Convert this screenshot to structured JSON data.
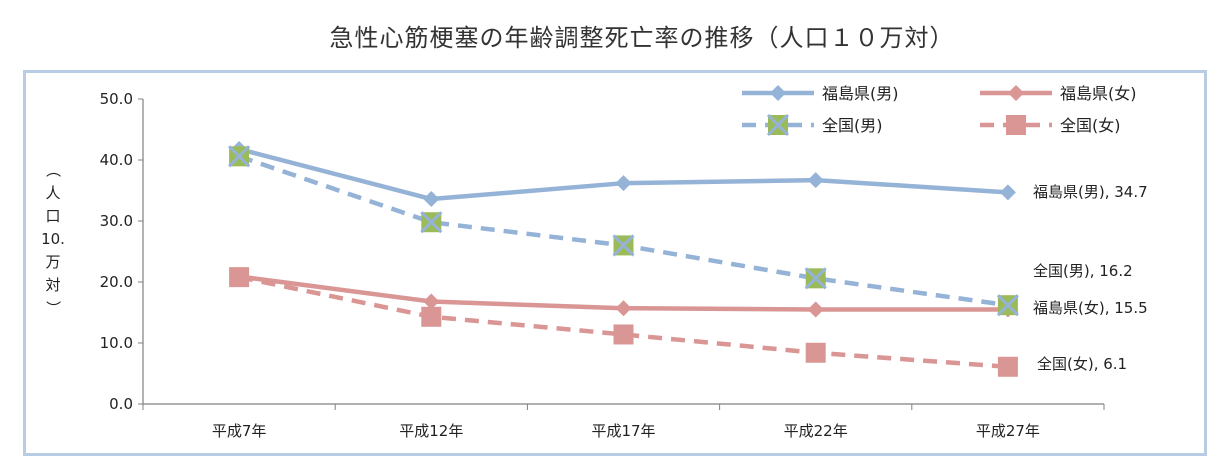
{
  "chart_data": {
    "type": "line",
    "title": "急性心筋梗塞の年齢調整死亡率の推移（人口１０万対）",
    "ylabel_chars": [
      "（",
      "人",
      "口",
      "10.",
      "万",
      "対",
      "）"
    ],
    "categories": [
      "平成7年",
      "平成12年",
      "平成17年",
      "平成22年",
      "平成27年"
    ],
    "ylim": [
      0,
      50
    ],
    "yticks": [
      "0.0",
      "10.0",
      "20.0",
      "30.0",
      "40.0",
      "50.0"
    ],
    "grid": false,
    "legend_position": "top-right",
    "series": [
      {
        "name": "福島県(男)",
        "values": [
          41.8,
          33.6,
          36.2,
          36.7,
          34.7
        ],
        "color": "#95b3d7",
        "dash": false,
        "marker": "diamond",
        "end_label": "福島県(男), 34.7"
      },
      {
        "name": "福島県(女)",
        "values": [
          20.9,
          16.8,
          15.7,
          15.5,
          15.5
        ],
        "color": "#d99694",
        "dash": false,
        "marker": "diamond",
        "end_label": "福島県(女), 15.5"
      },
      {
        "name": "全国(男)",
        "values": [
          40.6,
          29.8,
          26.0,
          20.6,
          16.2
        ],
        "color": "#95b3d7",
        "dash": true,
        "marker": "x-square",
        "end_label": "全国(男), 16.2"
      },
      {
        "name": "全国(女)",
        "values": [
          20.8,
          14.3,
          11.4,
          8.4,
          6.1
        ],
        "color": "#d99694",
        "dash": true,
        "marker": "square",
        "end_label": "全国(女), 6.1"
      }
    ]
  }
}
